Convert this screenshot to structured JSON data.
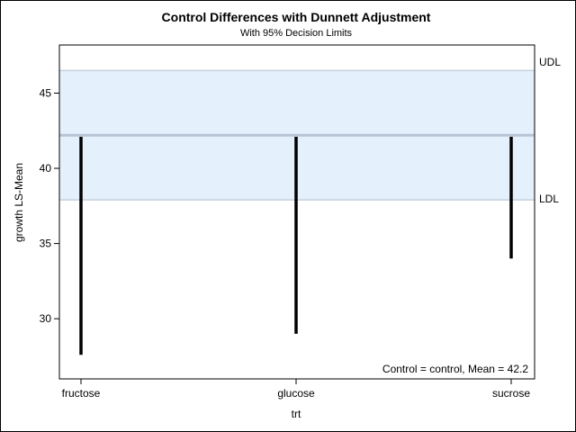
{
  "chart_data": {
    "type": "bar",
    "title": "Control Differences with Dunnett Adjustment",
    "subtitle": "With 95% Decision Limits",
    "xlabel": "trt",
    "ylabel": "growth LS-Mean",
    "categories": [
      "fructose",
      "glucose",
      "sucrose"
    ],
    "series": [
      {
        "low": [
          27.6,
          29.0,
          34.0
        ],
        "high": [
          42.1,
          42.1,
          42.1
        ]
      }
    ],
    "control_mean": 42.2,
    "decision_limits": {
      "lower": 37.9,
      "upper": 46.5
    },
    "ref_labels": {
      "upper": "UDL",
      "lower": "LDL"
    },
    "inset_text": "Control = control, Mean = 42.2",
    "y_ticks": [
      30,
      35,
      40,
      45
    ],
    "ylim": [
      26,
      48.2
    ],
    "grid": false,
    "colors": {
      "band_fill": "#e5f0fd",
      "band_line": "#c5d0dc",
      "control_line": "#b8c4d4",
      "needle": "#000000"
    }
  }
}
